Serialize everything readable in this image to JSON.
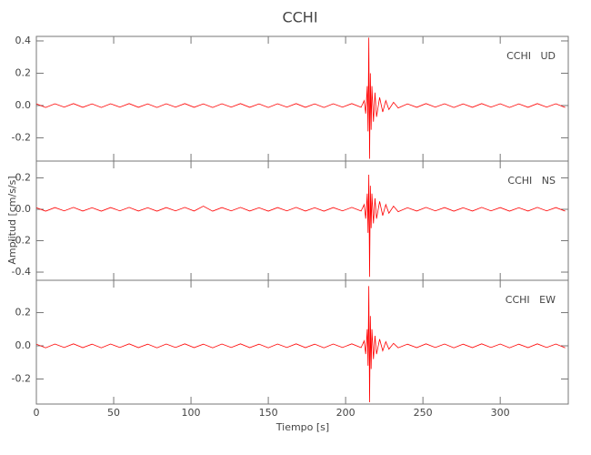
{
  "chart_data": [
    {
      "type": "line",
      "title": "CCHI",
      "annotation": "CCHI   UD",
      "color": "#ff0000",
      "xlim": [
        0,
        344
      ],
      "ylim": [
        -0.344,
        0.428
      ],
      "yticks": [
        0.4,
        0.2,
        {
          "value": 0,
          "label": "0.0"
        },
        -0.2
      ],
      "x": [
        0,
        6,
        12,
        18,
        24,
        30,
        36,
        42,
        48,
        54,
        60,
        66,
        72,
        78,
        84,
        90,
        96,
        102,
        108,
        114,
        120,
        126,
        132,
        138,
        144,
        150,
        156,
        162,
        168,
        174,
        180,
        186,
        192,
        198,
        204,
        210,
        212,
        213,
        214,
        214.5,
        215,
        215.5,
        216,
        216.5,
        217,
        218,
        219,
        220,
        222,
        224,
        226,
        228,
        231,
        234,
        240,
        246,
        252,
        258,
        264,
        270,
        276,
        282,
        288,
        294,
        300,
        306,
        312,
        318,
        324,
        330,
        336,
        342
      ],
      "values": [
        0.01,
        -0.012,
        0.011,
        -0.01,
        0.012,
        -0.011,
        0.01,
        -0.012,
        0.011,
        -0.01,
        0.012,
        -0.011,
        0.01,
        -0.012,
        0.011,
        -0.01,
        0.012,
        -0.011,
        0.01,
        -0.012,
        0.011,
        -0.01,
        0.012,
        -0.011,
        0.01,
        -0.012,
        0.011,
        -0.01,
        0.012,
        -0.011,
        0.01,
        -0.012,
        0.011,
        -0.01,
        0.012,
        -0.011,
        0.03,
        -0.05,
        0.12,
        -0.16,
        0.42,
        -0.33,
        0.2,
        -0.15,
        0.12,
        -0.1,
        0.08,
        -0.07,
        0.05,
        -0.04,
        0.03,
        -0.025,
        0.02,
        -0.015,
        0.01,
        -0.011,
        0.012,
        -0.01,
        0.011,
        -0.012,
        0.01,
        -0.011,
        0.012,
        -0.01,
        0.011,
        -0.012,
        0.01,
        -0.011,
        0.012,
        -0.01,
        0.011,
        -0.012
      ]
    },
    {
      "type": "line",
      "ylabel": "Amplitud [cm/s/s]",
      "annotation": "CCHI   NS",
      "color": "#ff0000",
      "xlim": [
        0,
        344
      ],
      "ylim": [
        -0.452,
        0.307
      ],
      "yticks": [
        0.2,
        {
          "value": 0,
          "label": "0.0"
        },
        -0.2,
        -0.4
      ],
      "x": [
        0,
        6,
        12,
        18,
        24,
        30,
        36,
        42,
        48,
        54,
        60,
        66,
        72,
        78,
        84,
        90,
        96,
        102,
        108,
        114,
        120,
        126,
        132,
        138,
        144,
        150,
        156,
        162,
        168,
        174,
        180,
        186,
        192,
        198,
        204,
        210,
        212,
        213,
        214,
        214.5,
        215,
        215.5,
        216,
        216.5,
        217,
        218,
        219,
        220,
        222,
        224,
        226,
        228,
        231,
        234,
        240,
        246,
        252,
        258,
        264,
        270,
        276,
        282,
        288,
        294,
        300,
        306,
        312,
        318,
        324,
        330,
        336,
        342
      ],
      "values": [
        0.01,
        -0.012,
        0.011,
        -0.01,
        0.012,
        -0.011,
        0.01,
        -0.012,
        0.011,
        -0.01,
        0.012,
        -0.011,
        0.01,
        -0.012,
        0.011,
        -0.01,
        0.012,
        -0.011,
        0.02,
        -0.012,
        0.011,
        -0.01,
        0.012,
        -0.011,
        0.01,
        -0.012,
        0.011,
        -0.01,
        0.012,
        -0.011,
        0.01,
        -0.012,
        0.011,
        -0.01,
        0.012,
        -0.011,
        0.03,
        -0.06,
        0.1,
        -0.15,
        0.22,
        -0.43,
        0.15,
        -0.12,
        0.1,
        -0.09,
        0.07,
        -0.06,
        0.05,
        -0.04,
        0.03,
        -0.025,
        0.02,
        -0.015,
        0.01,
        -0.011,
        0.012,
        -0.01,
        0.011,
        -0.012,
        0.01,
        -0.011,
        0.012,
        -0.01,
        0.011,
        -0.012,
        0.01,
        -0.011,
        0.012,
        -0.01,
        0.011,
        -0.012
      ]
    },
    {
      "type": "line",
      "annotation": "CCHI   EW",
      "xlabel": "Tiempo [s]",
      "color": "#ff0000",
      "xlim": [
        0,
        344
      ],
      "ylim": [
        -0.351,
        0.395
      ],
      "xticks": [
        0,
        50,
        100,
        150,
        200,
        250,
        300
      ],
      "yticks": [
        0.2,
        {
          "value": 0,
          "label": "0.0"
        },
        -0.2
      ],
      "x": [
        0,
        6,
        12,
        18,
        24,
        30,
        36,
        42,
        48,
        54,
        60,
        66,
        72,
        78,
        84,
        90,
        96,
        102,
        108,
        114,
        120,
        126,
        132,
        138,
        144,
        150,
        156,
        162,
        168,
        174,
        180,
        186,
        192,
        198,
        204,
        210,
        212,
        213,
        214,
        214.5,
        215,
        215.5,
        216,
        216.5,
        217,
        218,
        219,
        220,
        222,
        224,
        226,
        228,
        231,
        234,
        240,
        246,
        252,
        258,
        264,
        270,
        276,
        282,
        288,
        294,
        300,
        306,
        312,
        318,
        324,
        330,
        336,
        342
      ],
      "values": [
        0.01,
        -0.012,
        0.011,
        -0.01,
        0.012,
        -0.011,
        0.01,
        -0.012,
        0.011,
        -0.01,
        0.012,
        -0.011,
        0.01,
        -0.012,
        0.011,
        -0.01,
        0.012,
        -0.011,
        0.01,
        -0.012,
        0.011,
        -0.01,
        0.012,
        -0.011,
        0.01,
        -0.012,
        0.011,
        -0.01,
        0.012,
        -0.011,
        0.01,
        -0.012,
        0.011,
        -0.01,
        0.012,
        -0.011,
        0.03,
        -0.05,
        0.1,
        -0.12,
        0.36,
        -0.34,
        0.18,
        -0.14,
        0.1,
        -0.08,
        0.06,
        -0.05,
        0.04,
        -0.03,
        0.025,
        -0.02,
        0.015,
        -0.012,
        0.01,
        -0.011,
        0.012,
        -0.01,
        0.011,
        -0.012,
        0.01,
        -0.011,
        0.012,
        -0.01,
        0.011,
        -0.012,
        0.01,
        -0.011,
        0.012,
        -0.01,
        0.011,
        -0.012
      ]
    }
  ]
}
